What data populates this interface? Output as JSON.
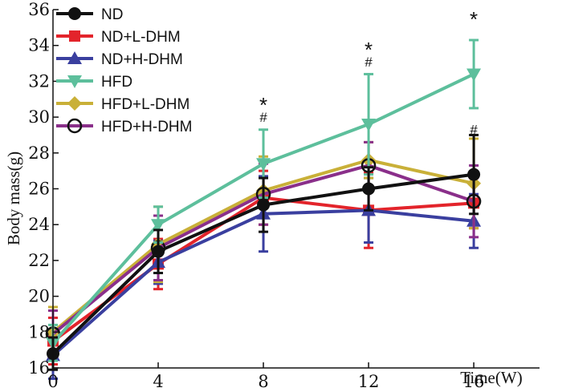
{
  "chart_data": {
    "type": "line",
    "title": "",
    "xlabel": "Time(W)",
    "ylabel": "Body mass(g)",
    "x": [
      0,
      4,
      8,
      12,
      16
    ],
    "xlim": [
      0,
      18.5
    ],
    "ylim": [
      16,
      36
    ],
    "xticks": [
      "0",
      "4",
      "8",
      "12",
      "16"
    ],
    "yticks": [
      "16",
      "18",
      "20",
      "22",
      "24",
      "26",
      "28",
      "30",
      "32",
      "34",
      "36"
    ],
    "legend_position": "top-left",
    "series": [
      {
        "name": "ND+L-DHM",
        "color": "#e3242b",
        "marker": "square",
        "values": [
          17.5,
          21.8,
          25.5,
          24.8,
          25.2
        ],
        "errors": [
          1.3,
          1.4,
          1.5,
          2.1,
          1.4
        ]
      },
      {
        "name": "ND+H-DHM",
        "color": "#3a3f9f",
        "marker": "triangle-up",
        "values": [
          16.7,
          21.9,
          24.6,
          24.8,
          24.2
        ],
        "errors": [
          1.3,
          1.2,
          2.1,
          1.8,
          1.5
        ]
      },
      {
        "name": "HFD+L-DHM",
        "color": "#c9b038",
        "marker": "diamond",
        "values": [
          18.0,
          22.9,
          25.9,
          27.6,
          26.3
        ],
        "errors": [
          1.4,
          2.1,
          1.9,
          1.0,
          2.5
        ]
      },
      {
        "name": "HFD+H-DHM",
        "color": "#8a2f8a",
        "marker": "circle-open",
        "values": [
          17.9,
          22.7,
          25.7,
          27.3,
          25.3
        ],
        "errors": [
          1.3,
          1.8,
          1.7,
          1.3,
          2.0
        ]
      },
      {
        "name": "HFD",
        "color": "#5dbf9c",
        "marker": "triangle-down",
        "values": [
          17.4,
          24.0,
          27.4,
          29.6,
          32.4
        ],
        "errors": [
          1.0,
          1.0,
          1.9,
          2.8,
          1.9
        ]
      },
      {
        "name": "ND",
        "color": "#111111",
        "marker": "circle",
        "values": [
          16.8,
          22.5,
          25.1,
          26.0,
          26.8
        ],
        "errors": [
          0.9,
          1.2,
          1.5,
          1.2,
          2.2
        ]
      }
    ],
    "legend_order": [
      "ND",
      "ND+L-DHM",
      "ND+H-DHM",
      "HFD",
      "HFD+L-DHM",
      "HFD+H-DHM"
    ],
    "annotations": [
      {
        "x": 8,
        "y": 30.8,
        "text": "*"
      },
      {
        "x": 8,
        "y": 30.0,
        "text": "#"
      },
      {
        "x": 12,
        "y": 33.9,
        "text": "*"
      },
      {
        "x": 12,
        "y": 33.1,
        "text": "#"
      },
      {
        "x": 16,
        "y": 35.6,
        "text": "*"
      },
      {
        "x": 16,
        "y": 29.3,
        "text": "#"
      }
    ]
  }
}
